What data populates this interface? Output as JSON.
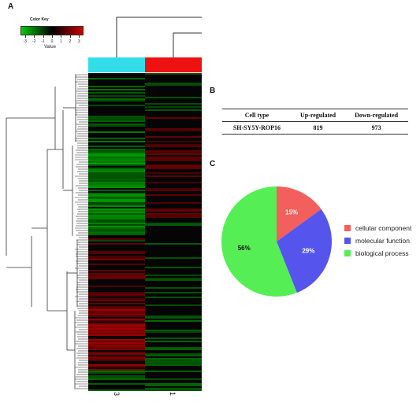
{
  "panels": {
    "a": "A",
    "b": "B",
    "c": "C"
  },
  "color_key": {
    "title": "Color Key",
    "label": "Value",
    "ticks": [
      "-3",
      "-2",
      "-1",
      "0",
      "1",
      "2",
      "3"
    ],
    "colors": {
      "low": "#00cc00",
      "mid": "#000000",
      "high": "#cc0000"
    }
  },
  "heatmap": {
    "columns": [
      {
        "label": "3",
        "group_color": "#33dde8"
      },
      {
        "label": "1",
        "group_color": "#ee1111"
      }
    ]
  },
  "table": {
    "headers": [
      "Cell type",
      "Up-regulated",
      "Down-regulated"
    ],
    "rows": [
      [
        "SH-SY5Y-ROP16",
        "819",
        "973"
      ]
    ]
  },
  "chart_data": {
    "type": "pie",
    "slices": [
      {
        "label": "cellular component",
        "value": 15,
        "display": "15%",
        "color": "#f25f5c"
      },
      {
        "label": "molecular function",
        "value": 29,
        "display": "29%",
        "color": "#5555ee"
      },
      {
        "label": "biological process",
        "value": 56,
        "display": "56%",
        "color": "#55ee55"
      }
    ],
    "legend_position": "right"
  }
}
